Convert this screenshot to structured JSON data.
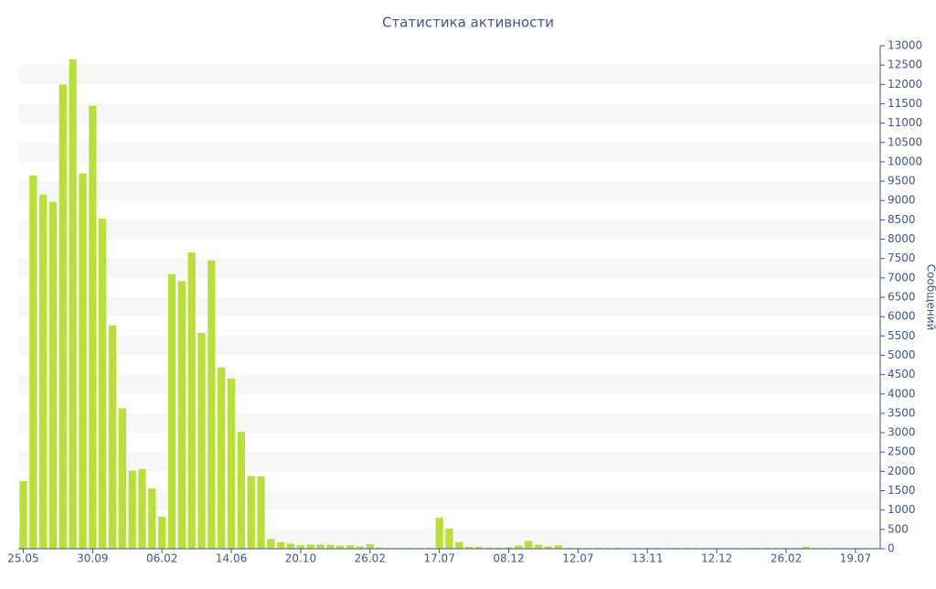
{
  "chart_data": {
    "type": "bar",
    "title": "Статистика активности",
    "y_label": "Сообщений",
    "y_axis_side": "right",
    "categories": [
      "25.05",
      null,
      null,
      null,
      null,
      null,
      null,
      "30.09",
      null,
      null,
      null,
      null,
      null,
      null,
      "06.02",
      null,
      null,
      null,
      null,
      null,
      null,
      "14.06",
      null,
      null,
      null,
      null,
      null,
      null,
      "20.10",
      null,
      null,
      null,
      null,
      null,
      null,
      "26.02",
      null,
      null,
      null,
      null,
      null,
      null,
      "17.07",
      null,
      null,
      null,
      null,
      null,
      null,
      "08.12",
      null,
      null,
      null,
      null,
      null,
      null,
      "12.07",
      null,
      null,
      null,
      null,
      null,
      null,
      "13.11",
      null,
      null,
      null,
      null,
      null,
      null,
      "12.12",
      null,
      null,
      null,
      null,
      null,
      null,
      "26.02",
      null,
      null,
      null,
      null,
      null,
      null,
      "19.07",
      null,
      null
    ],
    "values": [
      1750,
      9650,
      9150,
      8970,
      12000,
      12650,
      9700,
      11450,
      8530,
      5770,
      3630,
      2020,
      2060,
      1560,
      830,
      7100,
      6920,
      7660,
      5580,
      7450,
      4690,
      4400,
      3020,
      1880,
      1870,
      250,
      170,
      130,
      90,
      110,
      110,
      100,
      80,
      90,
      60,
      120,
      30,
      20,
      20,
      20,
      20,
      20,
      800,
      520,
      170,
      50,
      50,
      30,
      30,
      40,
      80,
      200,
      100,
      60,
      90,
      20,
      20,
      20,
      20,
      20,
      20,
      20,
      20,
      20,
      20,
      20,
      20,
      20,
      20,
      20,
      20,
      20,
      20,
      20,
      20,
      20,
      20,
      20,
      20,
      50,
      20,
      20,
      20,
      20,
      20,
      20,
      20
    ],
    "color": "#b8e036",
    "ylim": [
      0,
      13000
    ],
    "yticks": [
      0,
      500,
      1000,
      1500,
      2000,
      2500,
      3000,
      3500,
      4000,
      4500,
      5000,
      5500,
      6000,
      6500,
      7000,
      7500,
      8000,
      8500,
      9000,
      9500,
      10000,
      10500,
      11000,
      11500,
      12000,
      12500,
      13000
    ],
    "grid": true
  }
}
